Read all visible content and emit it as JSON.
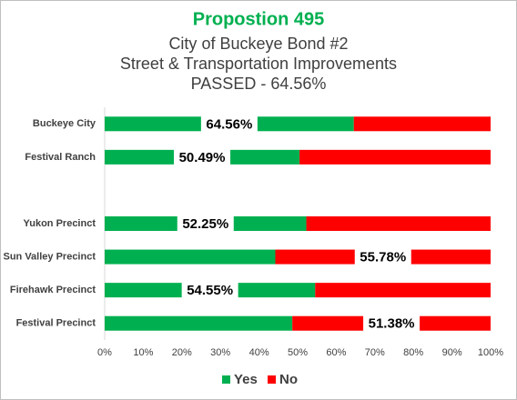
{
  "chart_data": {
    "type": "stacked_bar_horizontal",
    "title": "Propostion 495",
    "subtitle": [
      "City of Buckeye Bond #2",
      "Street & Transportation Improvements",
      "PASSED  - 64.56%"
    ],
    "categories": [
      "Buckeye City",
      "Festival Ranch",
      null,
      "Yukon Precinct",
      "Sun Valley Precinct",
      "Firehawk Precinct",
      "Festival Precinct"
    ],
    "series": [
      {
        "name": "Yes",
        "color": "#00b050",
        "values": [
          64.56,
          50.49,
          null,
          52.25,
          44.22,
          54.55,
          48.62
        ],
        "value_labels": [
          "64.56%",
          "50.49%",
          null,
          "52.25%",
          null,
          "54.55%",
          null
        ]
      },
      {
        "name": "No",
        "color": "#ff0000",
        "values": [
          35.44,
          49.51,
          null,
          47.75,
          55.78,
          45.45,
          51.38
        ],
        "value_labels": [
          null,
          null,
          null,
          null,
          "55.78%",
          null,
          "51.38%"
        ]
      }
    ],
    "xlim": [
      0,
      100
    ],
    "xticks": [
      {
        "value": 0,
        "label": "0%"
      },
      {
        "value": 10,
        "label": "10%"
      },
      {
        "value": 20,
        "label": "20%"
      },
      {
        "value": 30,
        "label": "30%"
      },
      {
        "value": 40,
        "label": "40%"
      },
      {
        "value": 50,
        "label": "50%"
      },
      {
        "value": 60,
        "label": "60%"
      },
      {
        "value": 70,
        "label": "70%"
      },
      {
        "value": 80,
        "label": "80%"
      },
      {
        "value": 90,
        "label": "90%"
      },
      {
        "value": 100,
        "label": "100%"
      }
    ],
    "legend": "bottom"
  }
}
